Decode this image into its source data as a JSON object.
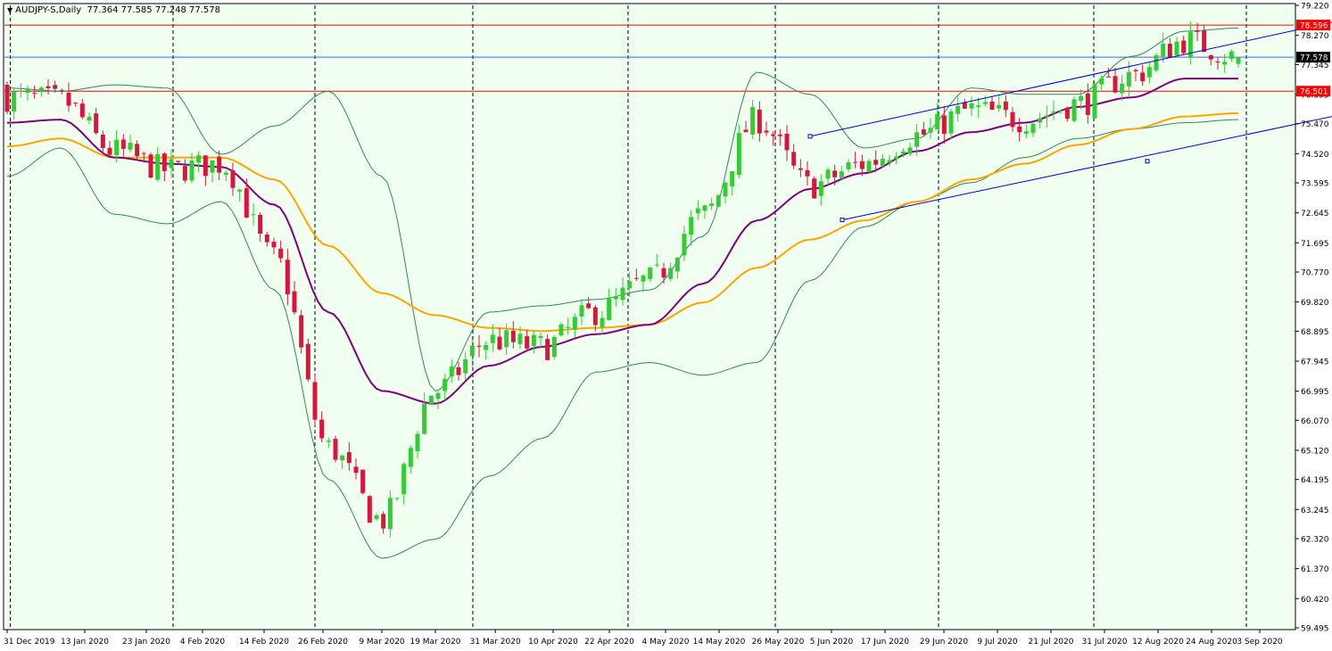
{
  "header": {
    "menu_icon": "triangle-down-icon",
    "symbol": "AUDJPY-S,Daily",
    "ohlc": "77.364 77.585 77.248 77.578"
  },
  "colors": {
    "background": "#F0FFF0",
    "bull": "#32CD32",
    "bear": "#DC143C",
    "bollinger": "#2E8B57",
    "ma_fast": "#800080",
    "ma_slow": "#FFA500",
    "level_red": "#FF0000",
    "level_blue": "#4169E1",
    "channel": "#0000CD"
  },
  "chart_data": {
    "type": "candlestick",
    "y_ticks": [
      "79.220",
      "78.270",
      "77.345",
      "76.395",
      "75.470",
      "74.520",
      "73.595",
      "72.645",
      "71.695",
      "70.770",
      "69.820",
      "68.895",
      "67.945",
      "66.995",
      "66.070",
      "65.120",
      "64.195",
      "63.245",
      "62.320",
      "61.370",
      "60.420",
      "59.495"
    ],
    "ylim": [
      59.495,
      79.22
    ],
    "x_ticks": [
      "31 Dec 2019",
      "13 Jan 2020",
      "23 Jan 2020",
      "4 Feb 2020",
      "14 Feb 2020",
      "26 Feb 2020",
      "9 Mar 2020",
      "19 Mar 2020",
      "31 Mar 2020",
      "10 Apr 2020",
      "22 Apr 2020",
      "4 May 2020",
      "14 May 2020",
      "26 May 2020",
      "5 Jun 2020",
      "17 Jun 2020",
      "29 Jun 2020",
      "9 Jul 2020",
      "21 Jul 2020",
      "31 Jul 2020",
      "12 Aug 2020",
      "24 Aug 2020",
      "3 Sep 2020"
    ],
    "period_separators": [
      "1 Jan 2020",
      "1 Feb 2020",
      "1 Mar 2020",
      "1 Apr 2020",
      "1 May 2020",
      "1 Jun 2020",
      "1 Jul 2020",
      "1 Aug 2020",
      "1 Sep 2020"
    ],
    "price_levels": [
      {
        "label": "78.596",
        "value": 78.596,
        "color": "red"
      },
      {
        "label": "76.501",
        "value": 76.501,
        "color": "red"
      },
      {
        "label": "77.578",
        "value": 77.578,
        "color": "blue",
        "current": true
      }
    ],
    "channel": {
      "upper": [
        [
          15,
          75.07
        ],
        [
          25,
          78.78
        ]
      ],
      "lower": [
        [
          15.6,
          72.42
        ],
        [
          25.4,
          75.93
        ]
      ],
      "anchors": [
        [
          15,
          75.07
        ],
        [
          15.6,
          72.42
        ],
        [
          25.4,
          75.93
        ],
        [
          21.3,
          74.28
        ]
      ]
    },
    "anchors": [
      {
        "t": 0,
        "c": 76.3,
        "ma_fast": 75.5,
        "ma_slow": 74.75,
        "bb_up": 76.6,
        "bb_lo": 73.8
      },
      {
        "t": 1,
        "c": 76.2,
        "ma_fast": 75.6,
        "ma_slow": 75.0,
        "bb_up": 76.5,
        "bb_lo": 74.7
      },
      {
        "t": 2,
        "c": 74.6,
        "ma_fast": 74.4,
        "ma_slow": 74.4,
        "bb_up": 76.7,
        "bb_lo": 72.6
      },
      {
        "t": 3,
        "c": 74.0,
        "ma_fast": 74.2,
        "ma_slow": 74.4,
        "bb_up": 76.6,
        "bb_lo": 72.3
      },
      {
        "t": 4,
        "c": 74.2,
        "ma_fast": 74.1,
        "ma_slow": 74.4,
        "bb_up": 74.5,
        "bb_lo": 73.0
      },
      {
        "t": 5,
        "c": 71.2,
        "ma_fast": 72.9,
        "ma_slow": 73.7,
        "bb_up": 75.4,
        "bb_lo": 70.2
      },
      {
        "t": 6,
        "c": 65.2,
        "ma_fast": 69.5,
        "ma_slow": 71.6,
        "bb_up": 76.5,
        "bb_lo": 64.2
      },
      {
        "t": 7,
        "c": 62.9,
        "ma_fast": 67.0,
        "ma_slow": 70.1,
        "bb_up": 73.8,
        "bb_lo": 61.7
      },
      {
        "t": 8,
        "c": 67.0,
        "ma_fast": 66.6,
        "ma_slow": 69.4,
        "bb_up": 67.0,
        "bb_lo": 62.3
      },
      {
        "t": 9,
        "c": 68.6,
        "ma_fast": 67.8,
        "ma_slow": 69.0,
        "bb_up": 69.5,
        "bb_lo": 64.3
      },
      {
        "t": 10,
        "c": 68.4,
        "ma_fast": 68.4,
        "ma_slow": 68.9,
        "bb_up": 69.7,
        "bb_lo": 65.5
      },
      {
        "t": 11,
        "c": 69.5,
        "ma_fast": 68.8,
        "ma_slow": 69.0,
        "bb_up": 69.9,
        "bb_lo": 67.6
      },
      {
        "t": 12,
        "c": 70.5,
        "ma_fast": 69.1,
        "ma_slow": 69.1,
        "bb_up": 70.2,
        "bb_lo": 67.9
      },
      {
        "t": 13,
        "c": 72.6,
        "ma_fast": 70.4,
        "ma_slow": 69.8,
        "bb_up": 71.9,
        "bb_lo": 67.5
      },
      {
        "t": 14,
        "c": 75.6,
        "ma_fast": 72.4,
        "ma_slow": 70.9,
        "bb_up": 77.1,
        "bb_lo": 67.9
      },
      {
        "t": 15,
        "c": 73.5,
        "ma_fast": 73.4,
        "ma_slow": 71.8,
        "bb_up": 76.4,
        "bb_lo": 70.5
      },
      {
        "t": 16,
        "c": 74.2,
        "ma_fast": 73.9,
        "ma_slow": 72.4,
        "bb_up": 74.7,
        "bb_lo": 72.2
      },
      {
        "t": 17,
        "c": 75.1,
        "ma_fast": 74.6,
        "ma_slow": 73.0,
        "bb_up": 75.0,
        "bb_lo": 73.0
      },
      {
        "t": 18,
        "c": 75.9,
        "ma_fast": 75.2,
        "ma_slow": 73.7,
        "bb_up": 76.6,
        "bb_lo": 73.6
      },
      {
        "t": 19,
        "c": 75.6,
        "ma_fast": 75.5,
        "ma_slow": 74.2,
        "bb_up": 76.4,
        "bb_lo": 74.4
      },
      {
        "t": 20,
        "c": 76.1,
        "ma_fast": 76.0,
        "ma_slow": 74.8,
        "bb_up": 76.4,
        "bb_lo": 75.0
      },
      {
        "t": 21,
        "c": 77.0,
        "ma_fast": 76.3,
        "ma_slow": 75.3,
        "bb_up": 77.6,
        "bb_lo": 75.3
      },
      {
        "t": 22,
        "c": 78.1,
        "ma_fast": 76.9,
        "ma_slow": 75.7,
        "bb_up": 78.4,
        "bb_lo": 75.5
      },
      {
        "t": 23,
        "c": 77.578,
        "ma_fast": 76.9,
        "ma_slow": 75.8,
        "bb_up": 78.5,
        "bb_lo": 75.6
      }
    ]
  }
}
